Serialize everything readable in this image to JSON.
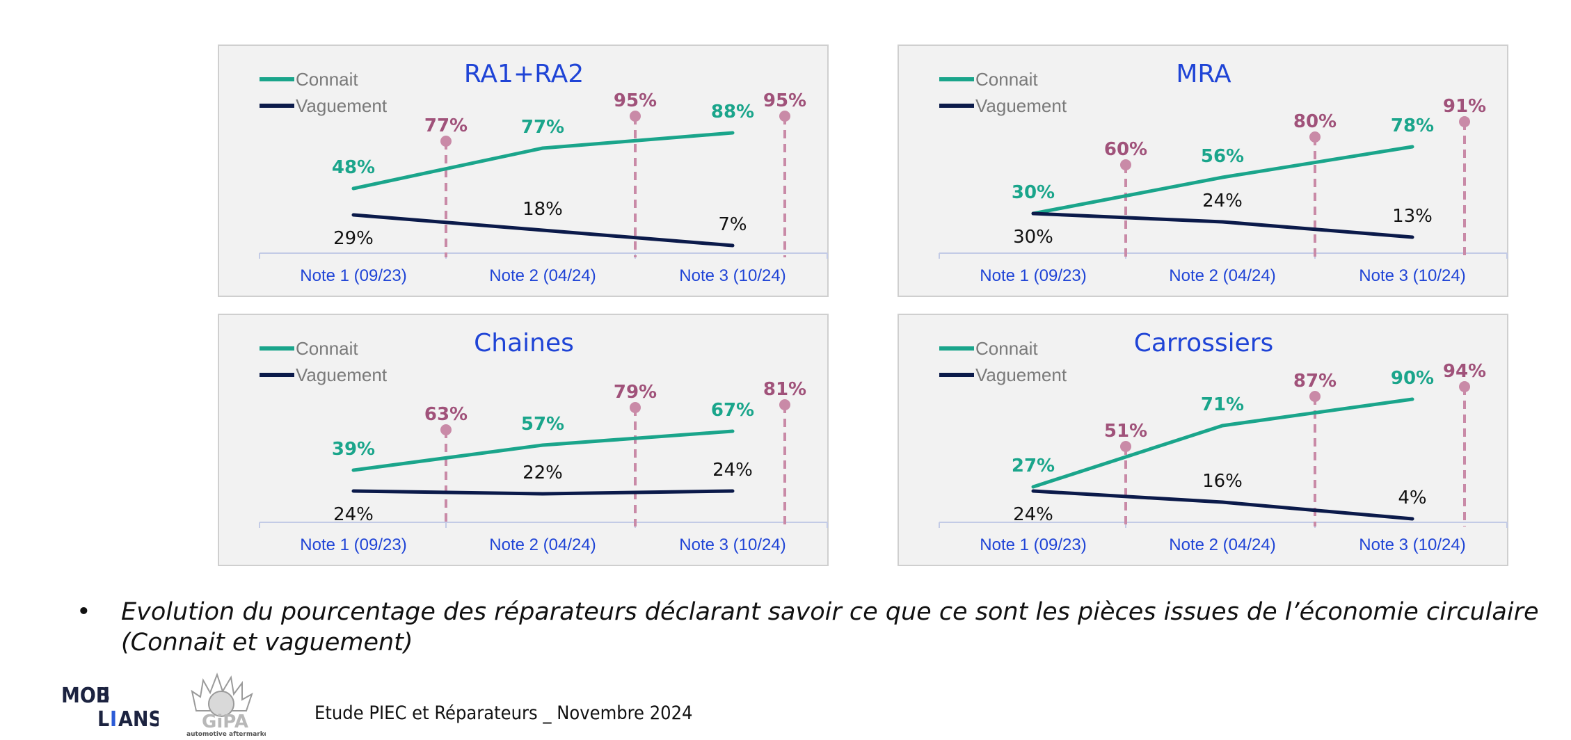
{
  "categories": [
    "Note 1 (09/23)",
    "Note 2 (04/24)",
    "Note 3 (10/24)"
  ],
  "legend": {
    "series_1": "Connait",
    "series_2": "Vaguement"
  },
  "colors": {
    "connait": "#1aa58b",
    "vaguement": "#0b1a4a",
    "total": "#a0527a",
    "total_line": "#c98aa7",
    "title": "#1f44d6",
    "axis_label": "#1f44d6",
    "legend_text": "#7a7a7a"
  },
  "chart_data": [
    {
      "type": "line",
      "title": "RA1+RA2",
      "categories": [
        "Note 1 (09/23)",
        "Note 2 (04/24)",
        "Note 3 (10/24)"
      ],
      "series": [
        {
          "name": "Connait",
          "values": [
            48,
            77,
            88
          ]
        },
        {
          "name": "Vaguement",
          "values": [
            29,
            18,
            7
          ]
        }
      ],
      "totals": [
        77,
        95,
        95
      ],
      "value_suffix": "%"
    },
    {
      "type": "line",
      "title": "MRA",
      "categories": [
        "Note 1 (09/23)",
        "Note 2 (04/24)",
        "Note 3 (10/24)"
      ],
      "series": [
        {
          "name": "Connait",
          "values": [
            30,
            56,
            78
          ]
        },
        {
          "name": "Vaguement",
          "values": [
            30,
            24,
            13
          ]
        }
      ],
      "totals": [
        60,
        80,
        91
      ],
      "value_suffix": "%"
    },
    {
      "type": "line",
      "title": "Chaines",
      "categories": [
        "Note 1 (09/23)",
        "Note 2 (04/24)",
        "Note 3 (10/24)"
      ],
      "series": [
        {
          "name": "Connait",
          "values": [
            39,
            57,
            67
          ]
        },
        {
          "name": "Vaguement",
          "values": [
            24,
            22,
            24
          ]
        }
      ],
      "totals": [
        63,
        79,
        81
      ],
      "value_suffix": "%"
    },
    {
      "type": "line",
      "title": "Carrossiers",
      "categories": [
        "Note 1 (09/23)",
        "Note 2 (04/24)",
        "Note 3 (10/24)"
      ],
      "series": [
        {
          "name": "Connait",
          "values": [
            27,
            71,
            90
          ]
        },
        {
          "name": "Vaguement",
          "values": [
            24,
            16,
            4
          ]
        }
      ],
      "totals": [
        51,
        87,
        94
      ],
      "value_suffix": "%"
    }
  ],
  "bullet": {
    "symbol": "•",
    "line_1": "Evolution du pourcentage des réparateurs déclarant savoir ce que ce sont les pièces issues de l’économie circulaire",
    "line_2": "(Connait et vaguement)"
  },
  "footer": {
    "text": "Etude PIEC et Réparateurs _ Novembre 2024",
    "logo_mobilians": "MOBILIANS",
    "logo_gipa": "GiPA",
    "logo_gipa_tagline": "automotive aftermarket"
  }
}
